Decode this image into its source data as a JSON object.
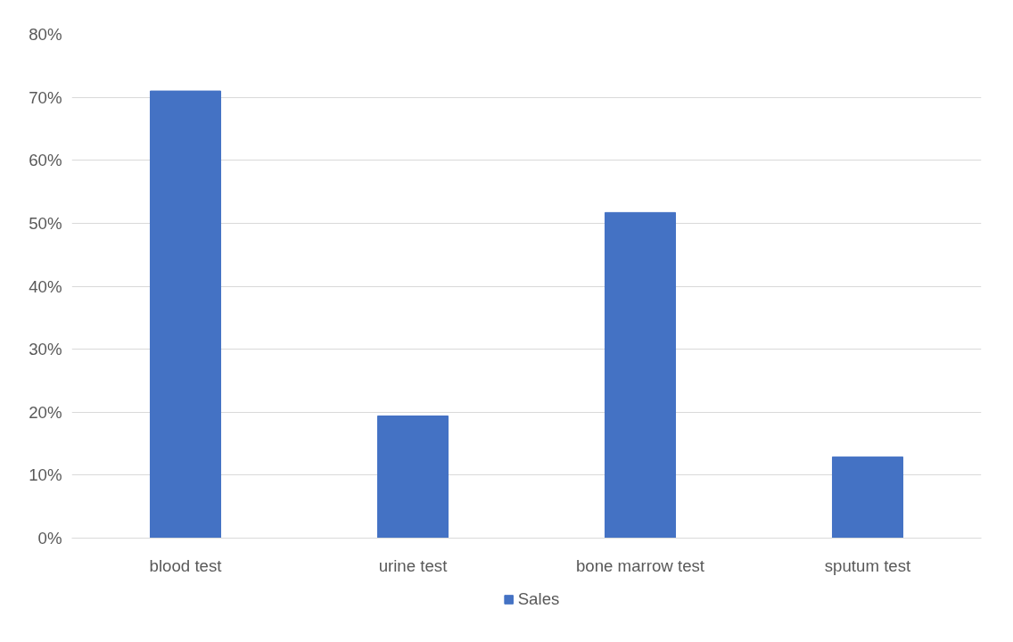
{
  "chart_data": {
    "type": "bar",
    "categories": [
      "blood test",
      "urine test",
      "bone marrow test",
      "sputum test"
    ],
    "series": [
      {
        "name": "Sales",
        "color": "#4472c4",
        "values": [
          71,
          19.4,
          51.7,
          12.9
        ]
      }
    ],
    "ylim": [
      0,
      80
    ],
    "yticks": [
      {
        "value": 0,
        "label": "0%"
      },
      {
        "value": 10,
        "label": "10%"
      },
      {
        "value": 20,
        "label": "20%"
      },
      {
        "value": 30,
        "label": "30%"
      },
      {
        "value": 40,
        "label": "40%"
      },
      {
        "value": 50,
        "label": "50%"
      },
      {
        "value": 60,
        "label": "60%"
      },
      {
        "value": 70,
        "label": "70%"
      },
      {
        "value": 80,
        "label": "80%"
      }
    ],
    "grid": "y",
    "legend": "bottom"
  }
}
